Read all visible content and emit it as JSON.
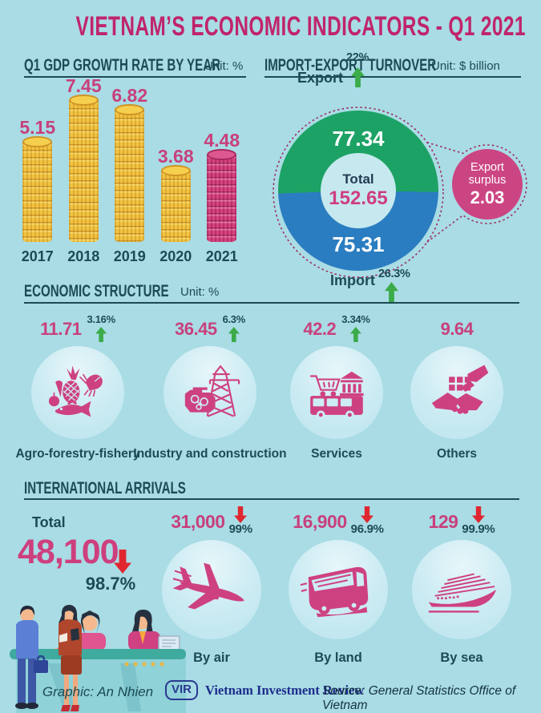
{
  "header": {
    "title": "VIETNAM’S ECONOMIC INDICATORS - Q1 2021"
  },
  "colors": {
    "background": "#a9dce5",
    "title_pink": "#c0246c",
    "value_pink": "#c8407c",
    "dark_teal": "#1d4b55",
    "coin_gold": "#f2c341",
    "coin_pink": "#d6437e",
    "donut_green": "#1da265",
    "donut_blue": "#2b7dc1",
    "surplus_pink": "#cc4583",
    "up_arrow_green": "#3cab49",
    "down_arrow_red": "#e02730",
    "logo_navy": "#2b3990"
  },
  "chart_data": [
    {
      "type": "bar",
      "title": "Q1 GDP GROWTH RATE BY YEAR",
      "unit": "Unit: %",
      "categories": [
        "2017",
        "2018",
        "2019",
        "2020",
        "2021"
      ],
      "values": [
        5.15,
        7.45,
        6.82,
        3.68,
        4.48
      ],
      "bar_style": [
        "gold-coins",
        "gold-coins",
        "gold-coins",
        "gold-coins",
        "pink-coins"
      ],
      "ylim": [
        0,
        8
      ]
    },
    {
      "type": "pie",
      "title": "IMPORT-EXPORT TURNOVER",
      "unit": "Unit: $ billion",
      "slices": [
        {
          "label": "Export",
          "value": 77.34,
          "change": "22%",
          "color": "#1da265"
        },
        {
          "label": "Import",
          "value": 75.31,
          "change": "26.3%",
          "color": "#2b7dc1"
        }
      ],
      "center_label": "Total",
      "center_value": 152.65,
      "callout": {
        "label_line1": "Export",
        "label_line2": "surplus",
        "value": 2.03
      }
    },
    {
      "type": "table",
      "title": "ECONOMIC STRUCTURE",
      "unit": "Unit: %",
      "items": [
        {
          "label": "Agro-forestry-fishery",
          "value": 11.71,
          "change": "3.16%",
          "icon": "agro-icon"
        },
        {
          "label": "Industry and construction",
          "value": 36.45,
          "change": "6.3%",
          "icon": "industry-icon"
        },
        {
          "label": "Services",
          "value": 42.2,
          "change": "3.34%",
          "icon": "services-icon"
        },
        {
          "label": "Others",
          "value": 9.64,
          "change": "",
          "icon": "handshake-icon"
        }
      ]
    },
    {
      "type": "table",
      "title": "INTERNATIONAL ARRIVALS",
      "total": {
        "label": "Total",
        "value": "48,100",
        "change": "98.7%"
      },
      "items": [
        {
          "label": "By air",
          "value": "31,000",
          "change": "99%",
          "icon": "airplane-icon"
        },
        {
          "label": "By land",
          "value": "16,900",
          "change": "96.9%",
          "icon": "bus-icon"
        },
        {
          "label": "By sea",
          "value": "129",
          "change": "99.9%",
          "icon": "ship-icon"
        }
      ]
    }
  ],
  "footer": {
    "credit": "Graphic: An Nhien",
    "logo_badge": "VIR",
    "logo_text": "Vietnam Investment Review",
    "source": "Source: General Statistics Office of Vietnam"
  }
}
